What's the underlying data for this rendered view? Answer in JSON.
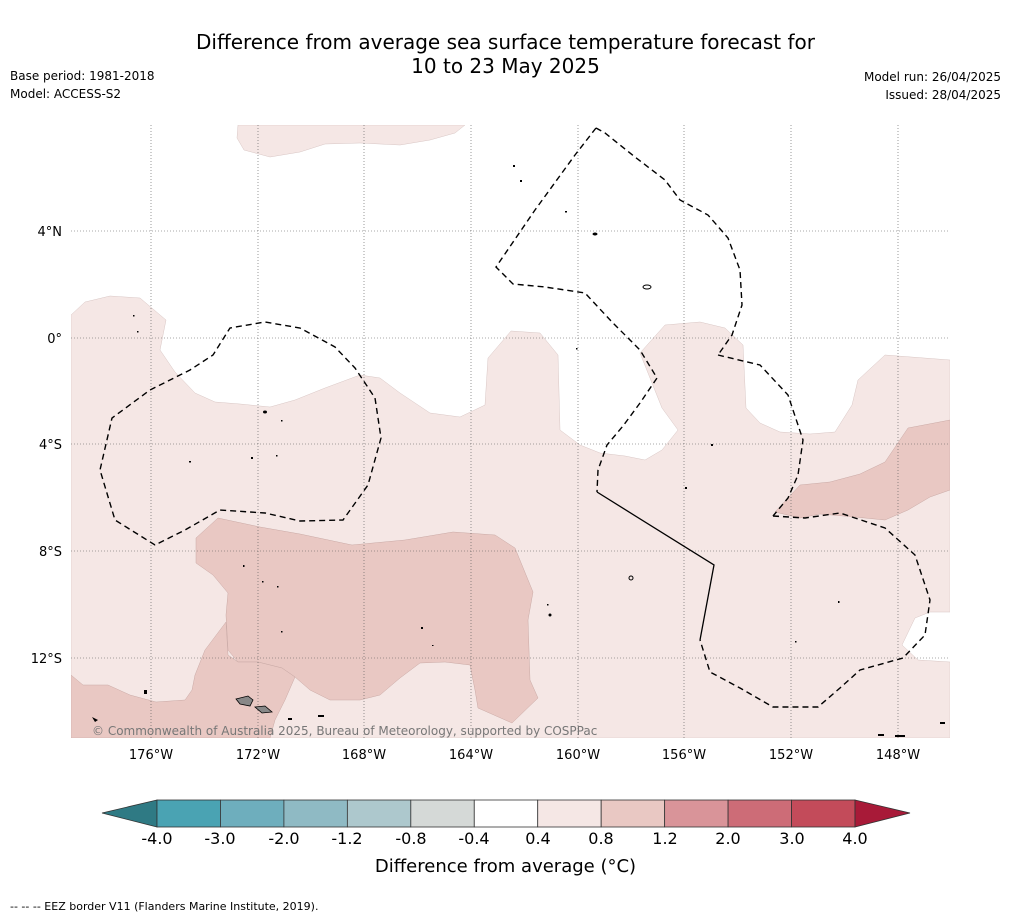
{
  "header": {
    "title_line1": "Difference from average sea surface temperature forecast for",
    "title_line2": "10 to 23 May 2025",
    "base_period": "Base period: 1981-2018",
    "model": "Model: ACCESS-S2",
    "model_run": "Model run: 26/04/2025",
    "issued": "Issued: 28/04/2025"
  },
  "map": {
    "lat_labels": [
      "4°N",
      "0°",
      "4°S",
      "8°S",
      "12°S"
    ],
    "lon_labels": [
      "176°W",
      "172°W",
      "168°W",
      "164°W",
      "160°W",
      "156°W",
      "152°W",
      "148°W"
    ],
    "copyright": "© Commonwealth of Australia 2025, Bureau of Meteorology, supported by COSPPac"
  },
  "colorbar": {
    "title": "Difference from average (°C)",
    "tick_labels": [
      "-4.0",
      "-3.0",
      "-2.0",
      "-1.2",
      "-0.8",
      "-0.4",
      "0.4",
      "0.8",
      "1.2",
      "2.0",
      "3.0",
      "4.0"
    ],
    "colors": {
      "under": "#2f7a84",
      "bins": [
        "#4aa3b3",
        "#6eaebd",
        "#8fbac4",
        "#adc8cd",
        "#d5d9d7",
        "#ffffff",
        "#f5e7e5",
        "#e9c8c3",
        "#d99499",
        "#cd6c77",
        "#c34b5a"
      ],
      "over": "#a81a38"
    }
  },
  "footnote": "--  --  -- EEZ border V11 (Flanders Marine Institute, 2019)."
}
